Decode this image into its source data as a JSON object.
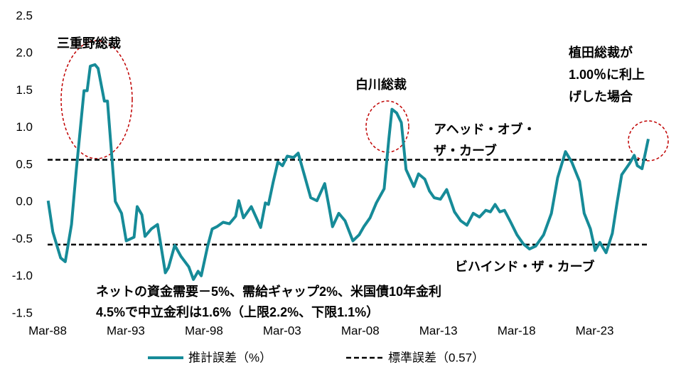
{
  "chart_data": {
    "type": "line",
    "x": [
      1988.2,
      1988.5,
      1989.0,
      1989.3,
      1989.7,
      1990.0,
      1990.5,
      1990.7,
      1990.9,
      1991.2,
      1991.4,
      1991.8,
      1992.0,
      1992.5,
      1992.9,
      1993.2,
      1993.7,
      1993.9,
      1994.2,
      1994.4,
      1994.8,
      1995.2,
      1995.7,
      1995.9,
      1996.3,
      1996.7,
      1997.2,
      1997.5,
      1997.8,
      1998.0,
      1998.4,
      1998.7,
      1999.0,
      1999.4,
      1999.8,
      2000.2,
      2000.4,
      2000.7,
      2001.2,
      2001.8,
      2002.1,
      2002.3,
      2002.6,
      2002.9,
      2003.2,
      2003.5,
      2003.9,
      2004.2,
      2004.6,
      2005.0,
      2005.4,
      2005.9,
      2006.2,
      2006.4,
      2006.8,
      2007.2,
      2007.7,
      2008.1,
      2008.4,
      2008.8,
      2009.2,
      2009.7,
      2010.0,
      2010.2,
      2010.5,
      2010.8,
      2011.1,
      2011.6,
      2011.9,
      2012.3,
      2012.6,
      2012.9,
      2013.3,
      2013.7,
      2014.2,
      2014.6,
      2015.0,
      2015.4,
      2015.8,
      2016.2,
      2016.5,
      2016.8,
      2017.1,
      2017.4,
      2017.8,
      2018.2,
      2018.6,
      2019.0,
      2019.4,
      2019.9,
      2020.4,
      2020.8,
      2021.3,
      2021.7,
      2022.2,
      2022.5,
      2022.9,
      2023.2,
      2023.5,
      2023.9,
      2024.3,
      2024.6,
      2024.9,
      2025.4,
      2025.7,
      2025.9,
      2026.2,
      2026.6
    ],
    "series": [
      {
        "name": "推計誤差（%）",
        "color": "#168b98",
        "values": [
          0.02,
          -0.4,
          -0.75,
          -0.8,
          -0.3,
          0.42,
          1.5,
          1.5,
          1.83,
          1.85,
          1.8,
          1.36,
          1.36,
          0.01,
          -0.15,
          -0.52,
          -0.47,
          -0.06,
          -0.17,
          -0.46,
          -0.36,
          -0.3,
          -0.95,
          -0.88,
          -0.58,
          -0.73,
          -0.87,
          -1.04,
          -0.93,
          -0.99,
          -0.6,
          -0.36,
          -0.33,
          -0.27,
          -0.29,
          -0.19,
          0.02,
          -0.21,
          -0.06,
          -0.34,
          -0.01,
          -0.03,
          0.27,
          0.54,
          0.49,
          0.62,
          0.6,
          0.66,
          0.36,
          0.06,
          0.02,
          0.25,
          -0.09,
          -0.33,
          -0.15,
          -0.25,
          -0.52,
          -0.44,
          -0.33,
          -0.21,
          -0.01,
          0.18,
          0.85,
          1.25,
          1.2,
          1.07,
          0.44,
          0.21,
          0.38,
          0.31,
          0.15,
          0.06,
          0.04,
          0.17,
          -0.13,
          -0.25,
          -0.31,
          -0.15,
          -0.2,
          -0.11,
          -0.13,
          -0.03,
          -0.13,
          -0.11,
          -0.27,
          -0.44,
          -0.56,
          -0.63,
          -0.59,
          -0.44,
          -0.15,
          0.33,
          0.68,
          0.54,
          0.28,
          -0.15,
          -0.36,
          -0.65,
          -0.54,
          -0.68,
          -0.42,
          -0.01,
          0.37,
          0.52,
          0.63,
          0.49,
          0.45,
          0.85
        ]
      }
    ],
    "reference_lines": {
      "name": "標準誤差（0.57）",
      "color": "#000000",
      "values": [
        0.57,
        -0.57
      ]
    },
    "xlim": [
      1988.17,
      2026.6
    ],
    "xticks": [
      {
        "value": 1988.17,
        "label": "Mar-88"
      },
      {
        "value": 1993.17,
        "label": "Mar-93"
      },
      {
        "value": 1998.17,
        "label": "Mar-98"
      },
      {
        "value": 2003.17,
        "label": "Mar-03"
      },
      {
        "value": 2008.17,
        "label": "Mar-08"
      },
      {
        "value": 2013.17,
        "label": "Mar-13"
      },
      {
        "value": 2018.17,
        "label": "Mar-18"
      },
      {
        "value": 2023.17,
        "label": "Mar-23"
      }
    ],
    "ylim": [
      -1.5,
      2.5
    ],
    "yticks": [
      2.5,
      {
        "value": 2.0,
        "label": "2.0"
      },
      1.5,
      {
        "value": 1.0,
        "label": "1.0"
      },
      0.5,
      {
        "value": 0.0,
        "label": "0.0"
      },
      -0.5,
      {
        "value": -1.0,
        "label": "-1.0"
      },
      -1.5
    ],
    "annotations": [
      {
        "lines": [
          "三重野総裁"
        ]
      },
      {
        "lines": [
          "白川総裁"
        ]
      },
      {
        "lines": [
          "植田総裁が",
          "1.00％に利上",
          "げした場合"
        ]
      },
      {
        "lines": [
          "アヘッド・オブ・",
          "ザ・カーブ"
        ]
      },
      {
        "lines": [
          "ビハインド・ザ・カーブ"
        ]
      },
      {
        "lines": [
          "ネットの資金需要－5%、需給ギャップ2%、米国債10年金利",
          "4.5%で中立金利は1.6%（上限2.2%、下限1.1%）"
        ]
      }
    ]
  }
}
